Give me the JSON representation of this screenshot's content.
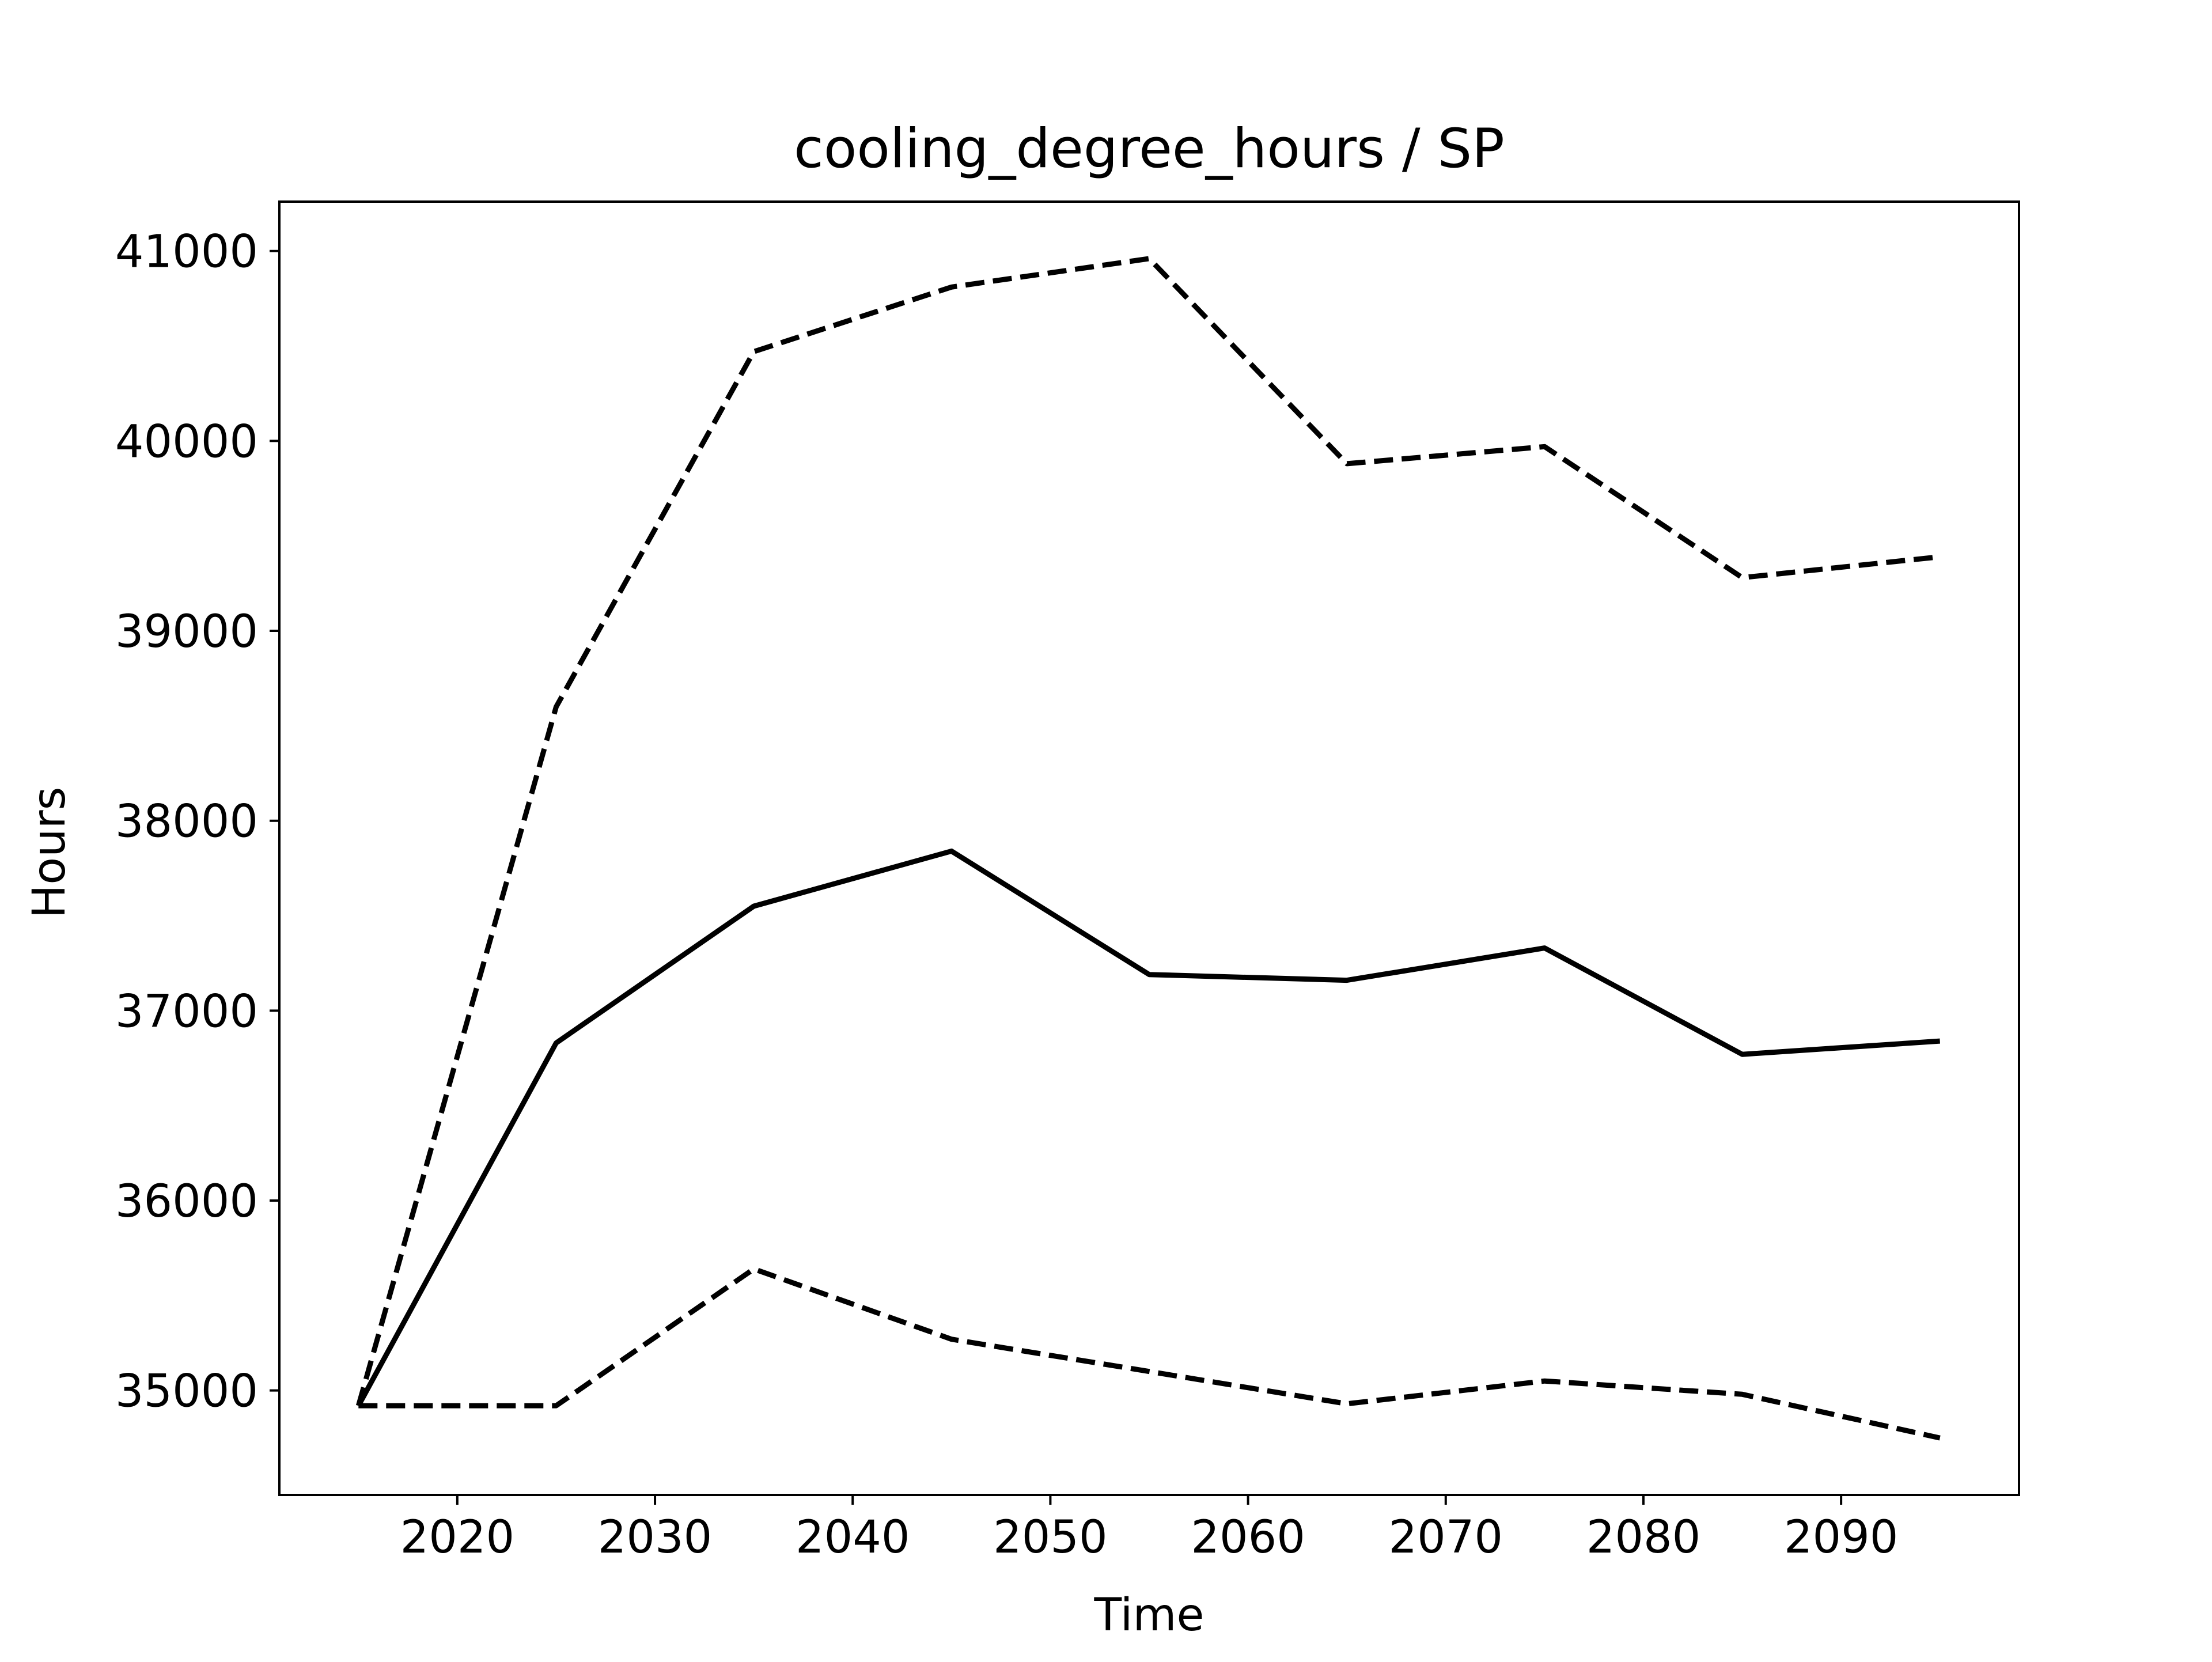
{
  "chart_data": {
    "type": "line",
    "title": "cooling_degree_hours / SP",
    "xlabel": "Time",
    "ylabel": "Hours",
    "xlim": [
      2011,
      2099
    ],
    "ylim": [
      34450,
      41260
    ],
    "x_ticks": [
      2020,
      2030,
      2040,
      2050,
      2060,
      2070,
      2080,
      2090
    ],
    "y_ticks": [
      35000,
      36000,
      37000,
      38000,
      39000,
      40000,
      41000
    ],
    "x": [
      2015,
      2025,
      2035,
      2045,
      2055,
      2065,
      2075,
      2085,
      2095
    ],
    "series": [
      {
        "style": "solid",
        "color": "#000000",
        "values": [
          34920,
          36830,
          37550,
          37840,
          37190,
          37160,
          37330,
          36770,
          36840
        ]
      },
      {
        "style": "dashed",
        "color": "#000000",
        "values": [
          34920,
          38600,
          40470,
          40810,
          40960,
          39880,
          39970,
          39280,
          39390
        ]
      },
      {
        "style": "dashed",
        "color": "#000000",
        "values": [
          34920,
          34920,
          35640,
          35270,
          35100,
          34930,
          35050,
          34980,
          34750
        ]
      }
    ],
    "grid": false,
    "legend": false
  }
}
